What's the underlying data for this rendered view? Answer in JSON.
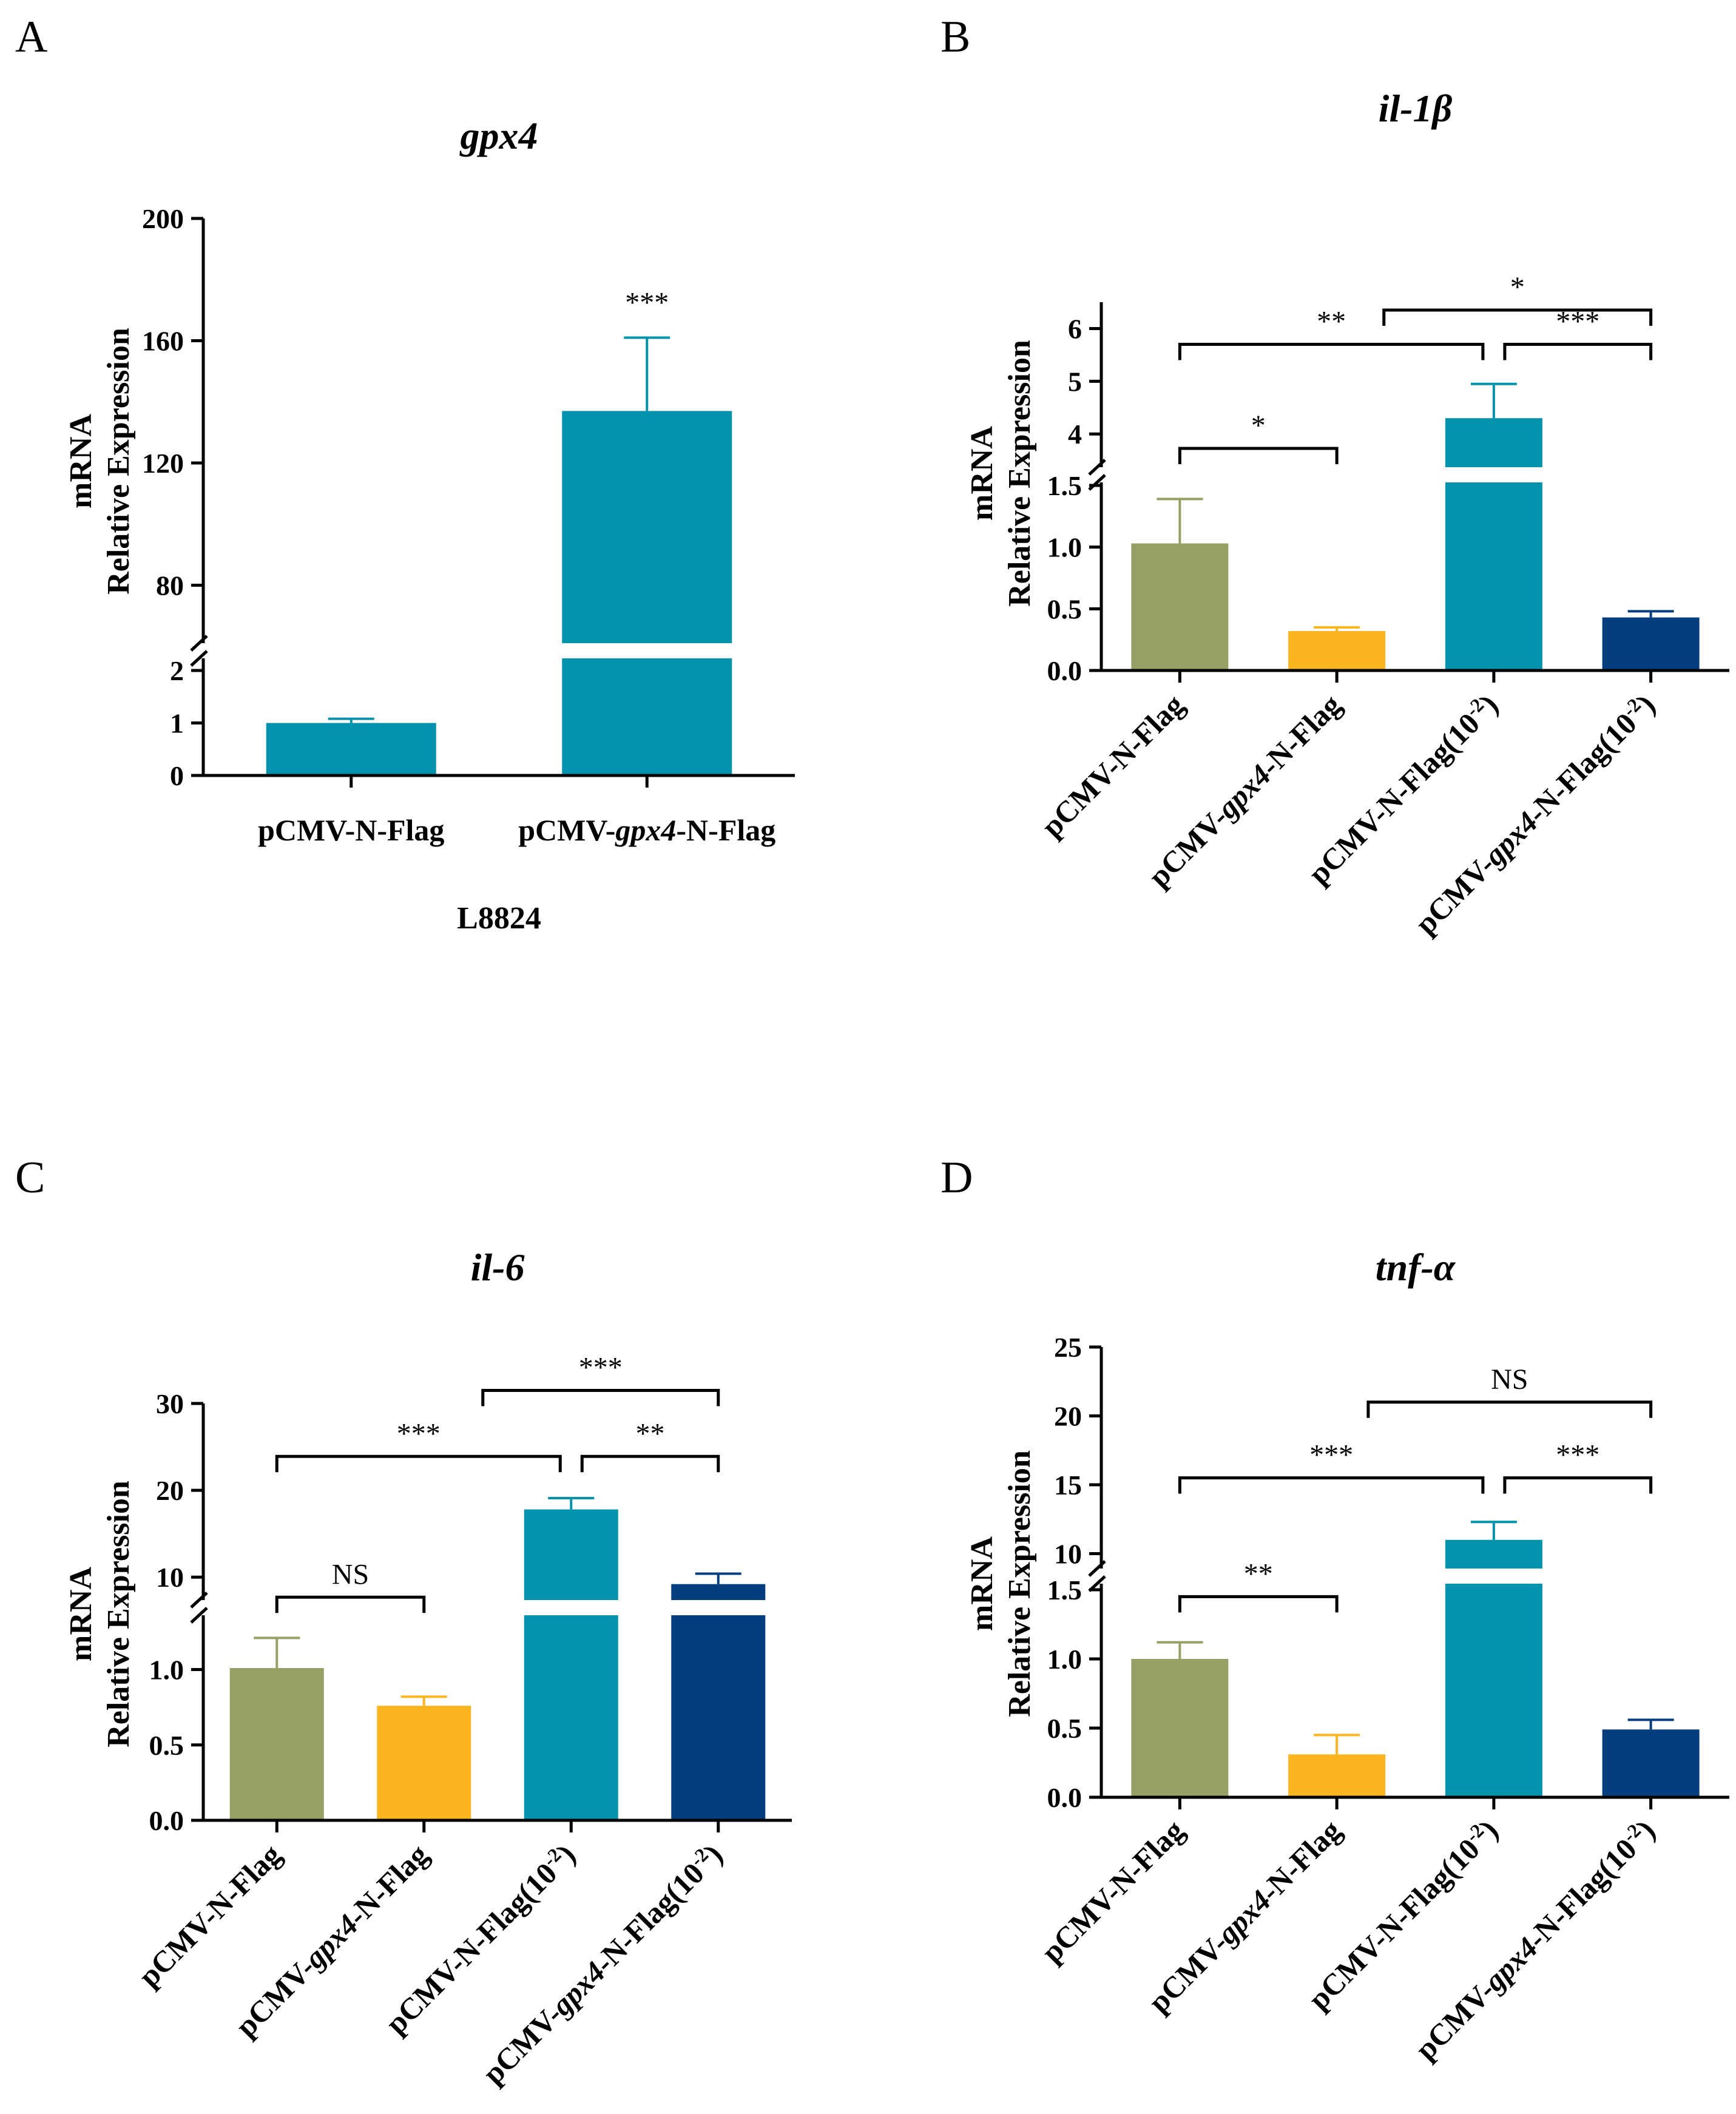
{
  "colors": {
    "olive": "#97a064",
    "orange": "#fbb520",
    "teal": "#0493ac",
    "navy": "#043e7e",
    "bracket": "#000000"
  },
  "chart_data": [
    {
      "panel": "A",
      "type": "bar",
      "title": "gpx4",
      "ylabel": "mRNA\nRelative Expression",
      "xlabel": "L8824",
      "rotate_categories": false,
      "categories": [
        {
          "parts": [
            {
              "t": "pCMV-N-Flag",
              "i": false
            }
          ]
        },
        {
          "parts": [
            {
              "t": "pCMV-",
              "i": false
            },
            {
              "t": "gpx4",
              "i": true
            },
            {
              "t": "-N-Flag",
              "i": false
            }
          ]
        }
      ],
      "values": [
        1.0,
        137
      ],
      "errors": [
        0.08,
        24
      ],
      "colors": [
        "teal",
        "teal"
      ],
      "axis_low": {
        "range": [
          0,
          2
        ],
        "ticks": [
          0,
          1,
          2
        ]
      },
      "axis_high": {
        "range": [
          66,
          200
        ],
        "ticks": [
          80,
          120,
          160,
          200
        ]
      },
      "brackets": [],
      "bar_marks": [
        {
          "bar": 1,
          "label": "***"
        }
      ]
    },
    {
      "panel": "B",
      "type": "bar",
      "title": "il-1β",
      "ylabel": "mRNA\nRelative Expression",
      "xlabel": "",
      "rotate_categories": true,
      "categories": [
        {
          "parts": [
            {
              "t": "pCMV-N-Flag",
              "i": false
            }
          ]
        },
        {
          "parts": [
            {
              "t": "pCMV-",
              "i": false
            },
            {
              "t": "gpx4",
              "i": true
            },
            {
              "t": "-N-Flag",
              "i": false
            }
          ]
        },
        {
          "parts": [
            {
              "t": "pCMV-N-Flag(10",
              "i": false
            },
            {
              "t": "-2",
              "i": false,
              "sup": true
            },
            {
              "t": ")",
              "i": false
            }
          ]
        },
        {
          "parts": [
            {
              "t": "pCMV-",
              "i": false
            },
            {
              "t": "gpx4",
              "i": true
            },
            {
              "t": "-N-Flag(10",
              "i": false
            },
            {
              "t": "-2",
              "i": false,
              "sup": true
            },
            {
              "t": ")",
              "i": false
            }
          ]
        }
      ],
      "values": [
        1.03,
        0.32,
        4.3,
        0.43
      ],
      "errors": [
        0.36,
        0.03,
        0.65,
        0.05
      ],
      "colors": [
        "olive",
        "orange",
        "teal",
        "navy"
      ],
      "axis_low": {
        "range": [
          0,
          1.5
        ],
        "ticks": [
          "0.0",
          "0.5",
          "1.0",
          "1.5"
        ]
      },
      "axis_high": {
        "range": [
          3.6,
          6.5
        ],
        "ticks": [
          4,
          5,
          6
        ]
      },
      "brackets": [
        {
          "from": 0,
          "to": 1,
          "axis": "low",
          "y": 1.8,
          "label": "*"
        },
        {
          "from": 0,
          "to": 2,
          "axis": "high",
          "y": 5.7,
          "label": "**"
        },
        {
          "from": 2,
          "to": 3,
          "axis": "high",
          "y": 5.7,
          "label": "***"
        },
        {
          "from": 1.3,
          "to": 3,
          "axis": "high",
          "y": 6.35,
          "label": "*"
        }
      ],
      "bar_marks": []
    },
    {
      "panel": "C",
      "type": "bar",
      "title": "il-6",
      "ylabel": "mRNA\nRelative Expression",
      "xlabel": "",
      "rotate_categories": true,
      "categories": [
        {
          "parts": [
            {
              "t": "pCMV-N-Flag",
              "i": false
            }
          ]
        },
        {
          "parts": [
            {
              "t": "pCMV-",
              "i": false
            },
            {
              "t": "gpx4",
              "i": true
            },
            {
              "t": "-N-Flag",
              "i": false
            }
          ]
        },
        {
          "parts": [
            {
              "t": "pCMV-N-Flag(10",
              "i": false
            },
            {
              "t": "-2",
              "i": false,
              "sup": true
            },
            {
              "t": ")",
              "i": false
            }
          ]
        },
        {
          "parts": [
            {
              "t": "pCMV-",
              "i": false
            },
            {
              "t": "gpx4",
              "i": true
            },
            {
              "t": "-N-Flag(10",
              "i": false
            },
            {
              "t": "-2",
              "i": false,
              "sup": true
            },
            {
              "t": ")",
              "i": false
            }
          ]
        }
      ],
      "values": [
        1.01,
        0.76,
        17.8,
        9.2
      ],
      "errors": [
        0.2,
        0.06,
        1.3,
        1.2
      ],
      "colors": [
        "olive",
        "orange",
        "teal",
        "navy"
      ],
      "axis_low": {
        "range": [
          0,
          1.3
        ],
        "ticks": [
          "0.0",
          "0.5",
          "1.0"
        ]
      },
      "axis_high": {
        "range": [
          8.2,
          30
        ],
        "ticks": [
          10,
          20,
          30
        ]
      },
      "brackets": [
        {
          "from": 0,
          "to": 1,
          "axis": "low",
          "y": 1.48,
          "label": "NS"
        },
        {
          "from": 0,
          "to": 2,
          "axis": "high",
          "y": 23.9,
          "label": "***"
        },
        {
          "from": 2,
          "to": 3,
          "axis": "high",
          "y": 23.9,
          "label": "**"
        },
        {
          "from": 1.4,
          "to": 3,
          "axis": "high",
          "y": 31.5,
          "label": "***"
        }
      ],
      "bar_marks": []
    },
    {
      "panel": "D",
      "type": "bar",
      "title": "tnf-α",
      "ylabel": "mRNA\nRelative Expression",
      "xlabel": "",
      "rotate_categories": true,
      "categories": [
        {
          "parts": [
            {
              "t": "pCMV-N-Flag",
              "i": false
            }
          ]
        },
        {
          "parts": [
            {
              "t": "pCMV-",
              "i": false
            },
            {
              "t": "gpx4",
              "i": true
            },
            {
              "t": "-N-Flag",
              "i": false
            }
          ]
        },
        {
          "parts": [
            {
              "t": "pCMV-N-Flag(10",
              "i": false
            },
            {
              "t": "-2",
              "i": false,
              "sup": true
            },
            {
              "t": ")",
              "i": false
            }
          ]
        },
        {
          "parts": [
            {
              "t": "pCMV-",
              "i": false
            },
            {
              "t": "gpx4",
              "i": true
            },
            {
              "t": "-N-Flag(10",
              "i": false
            },
            {
              "t": "-2",
              "i": false,
              "sup": true
            },
            {
              "t": ")",
              "i": false
            }
          ]
        }
      ],
      "values": [
        1.0,
        0.31,
        11.0,
        0.49
      ],
      "errors": [
        0.12,
        0.14,
        1.3,
        0.07
      ],
      "colors": [
        "olive",
        "orange",
        "teal",
        "navy"
      ],
      "axis_low": {
        "range": [
          0,
          1.5
        ],
        "ticks": [
          "0.0",
          "0.5",
          "1.0",
          "1.5"
        ]
      },
      "axis_high": {
        "range": [
          9.8,
          25
        ],
        "ticks": [
          10,
          15,
          20,
          25
        ]
      },
      "brackets": [
        {
          "from": 0,
          "to": 1,
          "axis": "low",
          "y": 1.45,
          "label": "**"
        },
        {
          "from": 0,
          "to": 2,
          "axis": "high",
          "y": 15.5,
          "label": "***"
        },
        {
          "from": 2,
          "to": 3,
          "axis": "high",
          "y": 15.5,
          "label": "***"
        },
        {
          "from": 1.2,
          "to": 3,
          "axis": "high",
          "y": 21.0,
          "label": "NS"
        }
      ],
      "bar_marks": []
    }
  ]
}
